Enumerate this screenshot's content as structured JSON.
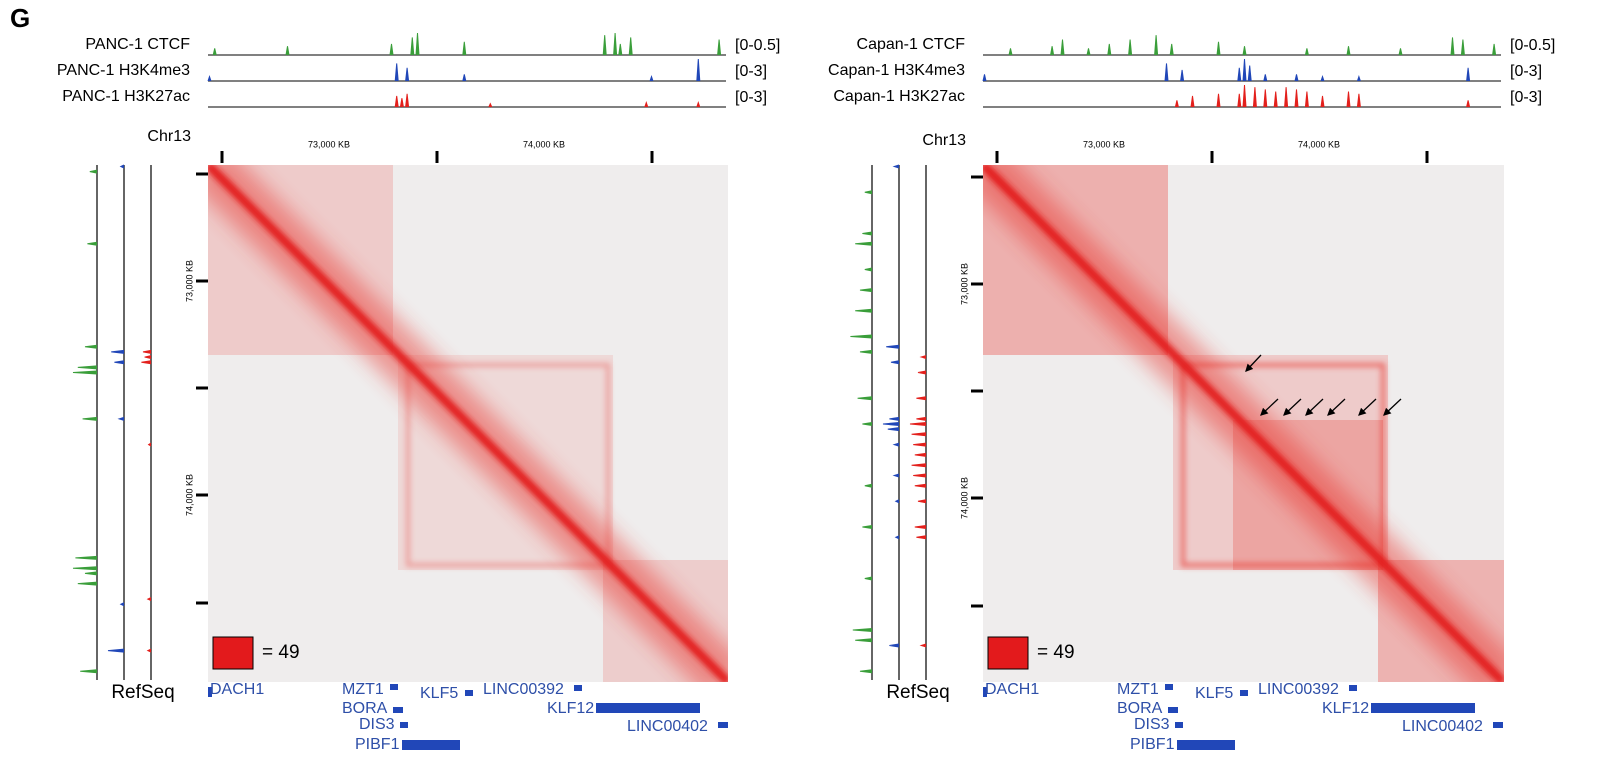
{
  "panel_label": "G",
  "panels": [
    {
      "tracks": [
        {
          "name": "PANC-1 CTCF",
          "range": "[0-0.5]"
        },
        {
          "name": "PANC-1 H3K4me3",
          "range": "[0-3]"
        },
        {
          "name": "PANC-1 H3K27ac",
          "range": "[0-3]"
        }
      ],
      "chromosome": "Chr13",
      "axis_labels": [
        "73,000 KB",
        "74,000 KB"
      ],
      "legend": "= 49",
      "refseq_label": "RefSeq",
      "genes": [
        "DACH1",
        "MZT1",
        "BORA",
        "DIS3",
        "PIBF1",
        "KLF5",
        "LINC00392",
        "KLF12",
        "LINC00402"
      ]
    },
    {
      "tracks": [
        {
          "name": "Capan-1 CTCF",
          "range": "[0-0.5]"
        },
        {
          "name": "Capan-1 H3K4me3",
          "range": "[0-3]"
        },
        {
          "name": "Capan-1 H3K27ac",
          "range": "[0-3]"
        }
      ],
      "chromosome": "Chr13",
      "axis_labels": [
        "73,000 KB",
        "74,000 KB"
      ],
      "legend": "= 49",
      "refseq_label": "RefSeq",
      "genes": [
        "DACH1",
        "MZT1",
        "BORA",
        "DIS3",
        "PIBF1",
        "KLF5",
        "LINC00392",
        "KLF12",
        "LINC00402"
      ]
    }
  ]
}
